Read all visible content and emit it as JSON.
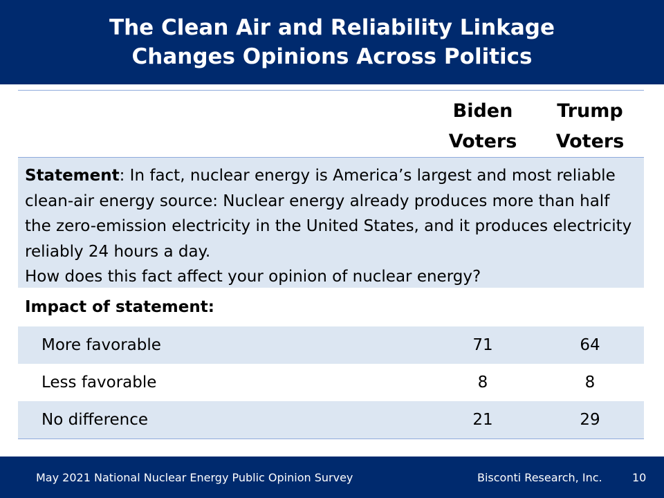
{
  "title": {
    "line1": "The Clean Air and Reliability Linkage",
    "line2": "Changes Opinions Across Politics"
  },
  "columns": {
    "biden_line1": "Biden",
    "biden_line2": "Voters",
    "trump_line1": "Trump",
    "trump_line2": "Voters"
  },
  "statement": {
    "label": "Statement",
    "text": ": In fact, nuclear energy is America’s largest and most reliable clean-air energy source: Nuclear energy already produces more than half the zero-emission electricity in the United States, and it produces electricity reliably 24 hours a day.",
    "question": "How does this fact affect your opinion of nuclear energy?"
  },
  "impact_heading": "Impact of statement:",
  "rows": [
    {
      "label": "More favorable",
      "biden": "71",
      "trump": "64"
    },
    {
      "label": "Less favorable",
      "biden": "8",
      "trump": "8"
    },
    {
      "label": "No difference",
      "biden": "21",
      "trump": "29"
    }
  ],
  "footer": {
    "survey": "May 2021 National Nuclear Energy Public Opinion Survey",
    "org": "Bisconti Research, Inc.",
    "page": "10"
  },
  "colors": {
    "navy": "#002a6e",
    "light_blue": "#dce6f2",
    "rule": "#8eaadb"
  }
}
